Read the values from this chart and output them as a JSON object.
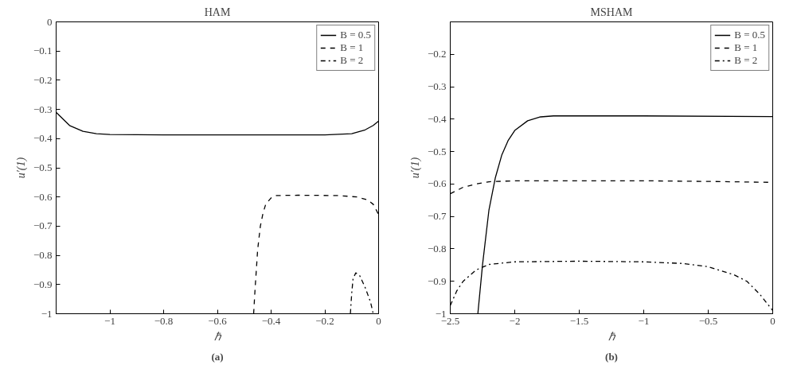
{
  "chart_data": [
    {
      "type": "line",
      "title": "HAM",
      "xlabel": "ℏ",
      "ylabel": "u′(1)",
      "annotations": [
        "(a)"
      ],
      "xlim": [
        -1.2,
        0
      ],
      "ylim": [
        -1,
        0
      ],
      "xticks": [
        {
          "value": -1,
          "label": "−1"
        },
        {
          "value": -0.8,
          "label": "−0.8"
        },
        {
          "value": -0.6,
          "label": "−0.6"
        },
        {
          "value": -0.4,
          "label": "−0.4"
        },
        {
          "value": -0.2,
          "label": "−0.2"
        },
        0
      ],
      "yticks": [
        {
          "value": -1,
          "label": "−1"
        },
        {
          "value": -0.9,
          "label": "−0.9"
        },
        {
          "value": -0.8,
          "label": "−0.8"
        },
        {
          "value": -0.7,
          "label": "−0.7"
        },
        {
          "value": -0.6,
          "label": "−0.6"
        },
        {
          "value": -0.5,
          "label": "−0.5"
        },
        {
          "value": -0.4,
          "label": "−0.4"
        },
        {
          "value": -0.3,
          "label": "−0.3"
        },
        {
          "value": -0.2,
          "label": "−0.2"
        },
        {
          "value": -0.1,
          "label": "−0.1"
        },
        0
      ],
      "grid": false,
      "legend": "top right",
      "marker": "none",
      "series": [
        {
          "name": "B = 0.5",
          "color": "#000000",
          "line_style": "solid",
          "x": [
            -1.2,
            -1.15,
            -1.1,
            -1.05,
            -1.0,
            -0.8,
            -0.5,
            -0.2,
            -0.1,
            -0.05,
            -0.02,
            0
          ],
          "values": [
            -0.31,
            -0.355,
            -0.375,
            -0.383,
            -0.386,
            -0.387,
            -0.387,
            -0.387,
            -0.383,
            -0.37,
            -0.355,
            -0.34
          ]
        },
        {
          "name": "B = 1",
          "color": "#000000",
          "line_style": "dashed",
          "x": [
            -0.465,
            -0.46,
            -0.45,
            -0.44,
            -0.43,
            -0.42,
            -0.4,
            -0.38,
            -0.3,
            -0.15,
            -0.08,
            -0.04,
            -0.02,
            0
          ],
          "values": [
            -1,
            -0.92,
            -0.78,
            -0.7,
            -0.655,
            -0.625,
            -0.603,
            -0.595,
            -0.594,
            -0.595,
            -0.6,
            -0.61,
            -0.625,
            -0.66
          ]
        },
        {
          "name": "B = 2",
          "color": "#000000",
          "line_style": "dashdot",
          "x": [
            -0.105,
            -0.1,
            -0.095,
            -0.085,
            -0.07,
            -0.05,
            -0.03,
            -0.02
          ],
          "values": [
            -1,
            -0.93,
            -0.88,
            -0.86,
            -0.87,
            -0.91,
            -0.96,
            -1
          ]
        }
      ]
    },
    {
      "type": "line",
      "title": "MSHAM",
      "xlabel": "ℏ",
      "ylabel": "u′(1)",
      "annotations": [
        "(b)"
      ],
      "xlim": [
        -2.5,
        0
      ],
      "ylim": [
        -1,
        -0.1
      ],
      "xticks": [
        {
          "value": -2.5,
          "label": "−2.5"
        },
        {
          "value": -2,
          "label": "−2"
        },
        {
          "value": -1.5,
          "label": "−1.5"
        },
        {
          "value": -1,
          "label": "−1"
        },
        {
          "value": -0.5,
          "label": "−0.5"
        },
        0
      ],
      "yticks": [
        {
          "value": -1,
          "label": "−1"
        },
        {
          "value": -0.9,
          "label": "−0.9"
        },
        {
          "value": -0.8,
          "label": "−0.8"
        },
        {
          "value": -0.7,
          "label": "−0.7"
        },
        {
          "value": -0.6,
          "label": "−0.6"
        },
        {
          "value": -0.5,
          "label": "−0.5"
        },
        {
          "value": -0.4,
          "label": "−0.4"
        },
        {
          "value": -0.3,
          "label": "−0.3"
        },
        {
          "value": -0.2,
          "label": "−0.2"
        }
      ],
      "grid": false,
      "legend": "top right",
      "marker": "none",
      "series": [
        {
          "name": "B = 0.5",
          "color": "#000000",
          "line_style": "solid",
          "x": [
            -2.286,
            -2.25,
            -2.2,
            -2.15,
            -2.1,
            -2.05,
            -2.0,
            -1.9,
            -1.8,
            -1.7,
            -1.0,
            0
          ],
          "values": [
            -1,
            -0.85,
            -0.68,
            -0.58,
            -0.51,
            -0.465,
            -0.435,
            -0.405,
            -0.393,
            -0.39,
            -0.39,
            -0.392
          ]
        },
        {
          "name": "B = 1",
          "color": "#000000",
          "line_style": "dashed",
          "x": [
            -2.5,
            -2.4,
            -2.3,
            -2.2,
            -2.0,
            -1.0,
            -0.5,
            0
          ],
          "values": [
            -0.63,
            -0.61,
            -0.6,
            -0.593,
            -0.59,
            -0.59,
            -0.592,
            -0.595
          ]
        },
        {
          "name": "B = 2",
          "color": "#000000",
          "line_style": "dashdot",
          "x": [
            -2.5,
            -2.45,
            -2.4,
            -2.3,
            -2.2,
            -2.0,
            -1.5,
            -1.0,
            -0.7,
            -0.5,
            -0.3,
            -0.2,
            -0.1,
            0
          ],
          "values": [
            -0.975,
            -0.93,
            -0.9,
            -0.865,
            -0.848,
            -0.84,
            -0.838,
            -0.84,
            -0.845,
            -0.855,
            -0.88,
            -0.9,
            -0.94,
            -0.99
          ]
        }
      ]
    }
  ]
}
